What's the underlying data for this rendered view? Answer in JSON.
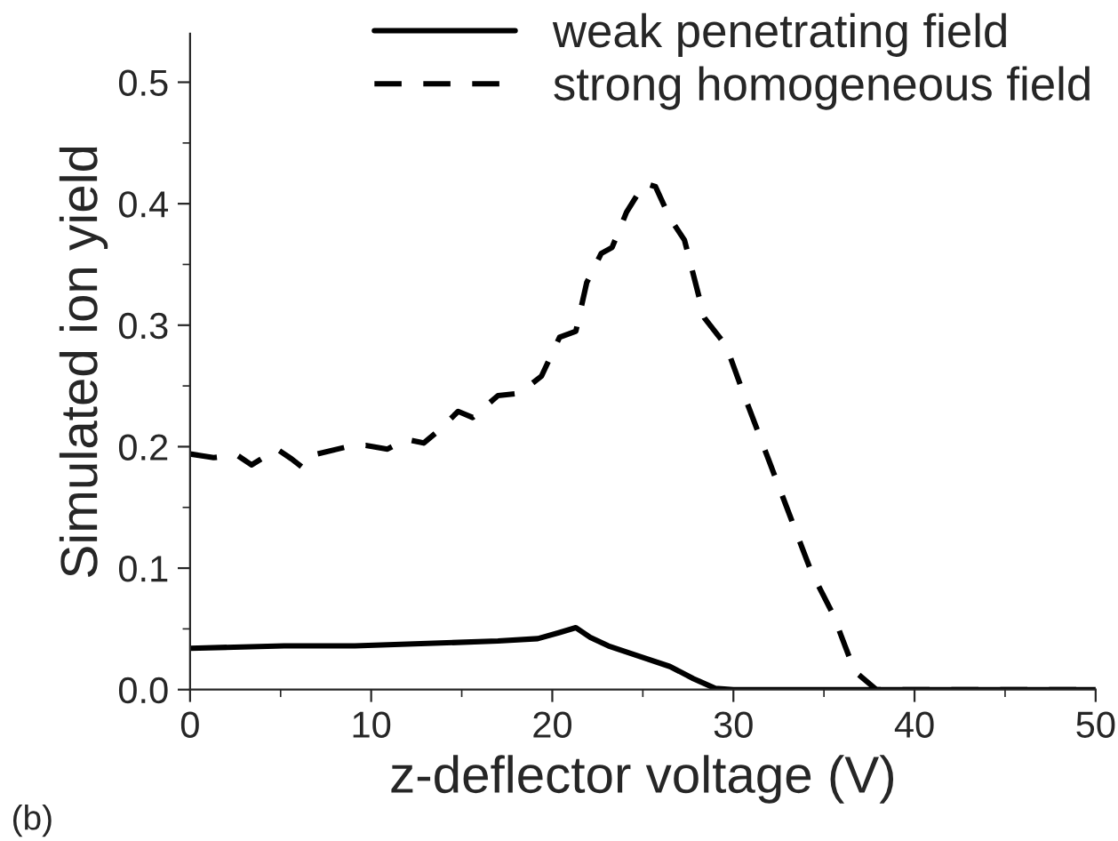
{
  "chart_data": {
    "type": "line",
    "xlabel": "z-deflector voltage (V)",
    "ylabel": "Simulated ion yield",
    "annotations": [
      "(b)"
    ],
    "xlim": [
      0,
      50
    ],
    "xticks": [
      0,
      10,
      20,
      30,
      40,
      50
    ],
    "ylim": [
      0,
      0.54
    ],
    "yticks": [
      {
        "value": 0,
        "label": "0.0"
      },
      0.1,
      0.2,
      0.3,
      0.4,
      0.5
    ],
    "legend": "top",
    "grid": false,
    "series": [
      {
        "name": "weak penetrating field",
        "color": "#000000",
        "line_style": "solid",
        "x": [
          0,
          5.2,
          9.1,
          13.1,
          17.0,
          19.2,
          20.4,
          21.3,
          22.1,
          23.1,
          24.9,
          26.5,
          27.8,
          29.0,
          30,
          40,
          50
        ],
        "values": [
          0.034,
          0.036,
          0.036,
          0.038,
          0.04,
          0.042,
          0.047,
          0.051,
          0.043,
          0.036,
          0.027,
          0.019,
          0.009,
          0.001,
          0,
          0,
          0
        ]
      },
      {
        "name": "strong homogeneous field",
        "color": "#000000",
        "line_style": "dashed",
        "x": [
          0,
          1.3,
          2.6,
          3.4,
          4.8,
          5.6,
          6.2,
          7.0,
          8.7,
          9.7,
          10.9,
          11.9,
          12.9,
          13.7,
          14.8,
          15.6,
          17.0,
          18.2,
          19.4,
          20.4,
          21.3,
          21.9,
          22.7,
          23.3,
          24.1,
          25.1,
          25.7,
          26.5,
          27.3,
          28.4,
          29.6,
          30.6,
          32.0,
          33.2,
          34.3,
          35.5,
          36.7,
          37.9,
          45,
          50
        ],
        "values": [
          0.194,
          0.191,
          0.193,
          0.185,
          0.198,
          0.19,
          0.183,
          0.194,
          0.2,
          0.201,
          0.198,
          0.206,
          0.203,
          0.213,
          0.229,
          0.224,
          0.242,
          0.244,
          0.258,
          0.29,
          0.295,
          0.335,
          0.359,
          0.364,
          0.393,
          0.417,
          0.414,
          0.388,
          0.37,
          0.306,
          0.283,
          0.242,
          0.187,
          0.14,
          0.097,
          0.062,
          0.015,
          0,
          0,
          0
        ]
      }
    ]
  }
}
